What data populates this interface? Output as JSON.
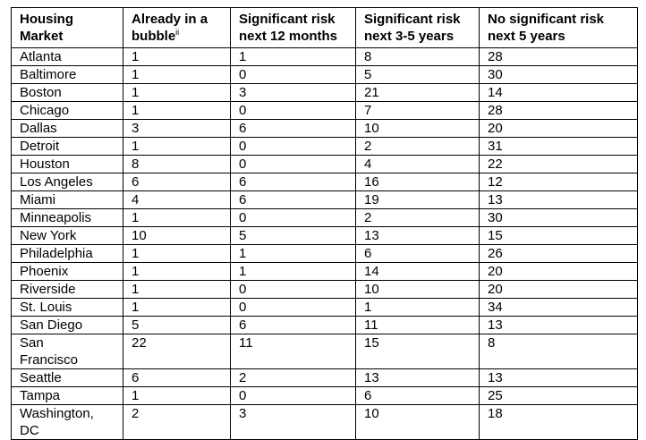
{
  "table": {
    "headers": [
      {
        "lines": [
          "Housing",
          "Market"
        ]
      },
      {
        "lines": [
          "Already in a",
          "bubble"
        ],
        "note": "ii"
      },
      {
        "lines": [
          "Significant risk",
          "next 12 months"
        ]
      },
      {
        "lines": [
          "Significant risk",
          "next 3-5 years"
        ]
      },
      {
        "lines": [
          "No significant risk",
          "next 5 years"
        ]
      }
    ],
    "rows": [
      [
        "Atlanta",
        "1",
        "1",
        "8",
        "28"
      ],
      [
        "Baltimore",
        "1",
        "0",
        "5",
        "30"
      ],
      [
        "Boston",
        "1",
        "3",
        "21",
        "14"
      ],
      [
        "Chicago",
        "1",
        "0",
        "7",
        "28"
      ],
      [
        "Dallas",
        "3",
        "6",
        "10",
        "20"
      ],
      [
        "Detroit",
        "1",
        "0",
        "2",
        "31"
      ],
      [
        "Houston",
        "8",
        "0",
        "4",
        "22"
      ],
      [
        "Los Angeles",
        "6",
        "6",
        "16",
        "12"
      ],
      [
        "Miami",
        "4",
        "6",
        "19",
        "13"
      ],
      [
        "Minneapolis",
        "1",
        "0",
        "2",
        "30"
      ],
      [
        "New York",
        "10",
        "5",
        "13",
        "15"
      ],
      [
        "Philadelphia",
        "1",
        "1",
        "6",
        "26"
      ],
      [
        "Phoenix",
        "1",
        "1",
        "14",
        "20"
      ],
      [
        "Riverside",
        "1",
        "0",
        "10",
        "20"
      ],
      [
        "St. Louis",
        "1",
        "0",
        "1",
        "34"
      ],
      [
        "San Diego",
        "5",
        "6",
        "11",
        "13"
      ],
      [
        "San Francisco",
        "22",
        "11",
        "15",
        "8"
      ],
      [
        "Seattle",
        "6",
        "2",
        "13",
        "13"
      ],
      [
        "Tampa",
        "1",
        "0",
        "6",
        "25"
      ],
      [
        "Washington, DC",
        "2",
        "3",
        "10",
        "18"
      ]
    ]
  }
}
